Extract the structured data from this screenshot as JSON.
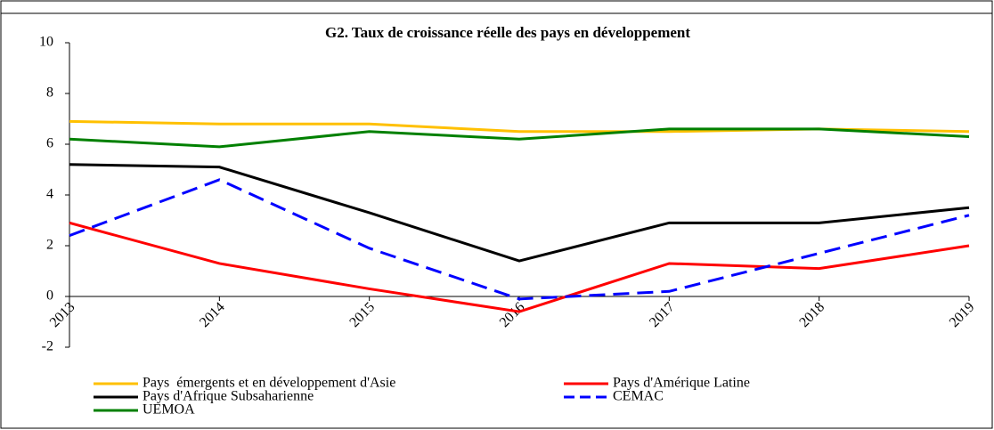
{
  "chart_data": {
    "type": "line",
    "title": "G2. Taux de croissance réelle des pays en développement",
    "categories": [
      "2013",
      "2014",
      "2015",
      "2016",
      "2017",
      "2018",
      "2019"
    ],
    "ylim": [
      -2,
      10
    ],
    "yticks": [
      -2,
      0,
      2,
      4,
      6,
      8,
      10
    ],
    "series": [
      {
        "name": "Pays  émergents et en développement d'Asie",
        "color": "#ffc000",
        "dash": false,
        "values": [
          6.9,
          6.8,
          6.8,
          6.5,
          6.5,
          6.6,
          6.5
        ]
      },
      {
        "name": "Pays d'Amérique Latine",
        "color": "#ff0000",
        "dash": false,
        "values": [
          2.9,
          1.3,
          0.3,
          -0.6,
          1.3,
          1.1,
          2.0
        ]
      },
      {
        "name": "Pays d'Afrique Subsaharienne",
        "color": "#000000",
        "dash": false,
        "values": [
          5.2,
          5.1,
          3.3,
          1.4,
          2.9,
          2.9,
          3.5
        ]
      },
      {
        "name": "CEMAC",
        "color": "#0000ff",
        "dash": true,
        "values": [
          2.4,
          4.6,
          1.9,
          -0.1,
          0.2,
          1.7,
          3.2
        ]
      },
      {
        "name": "UEMOA",
        "color": "#008000",
        "dash": false,
        "values": [
          6.2,
          5.9,
          6.5,
          6.2,
          6.6,
          6.6,
          6.3
        ]
      }
    ]
  }
}
